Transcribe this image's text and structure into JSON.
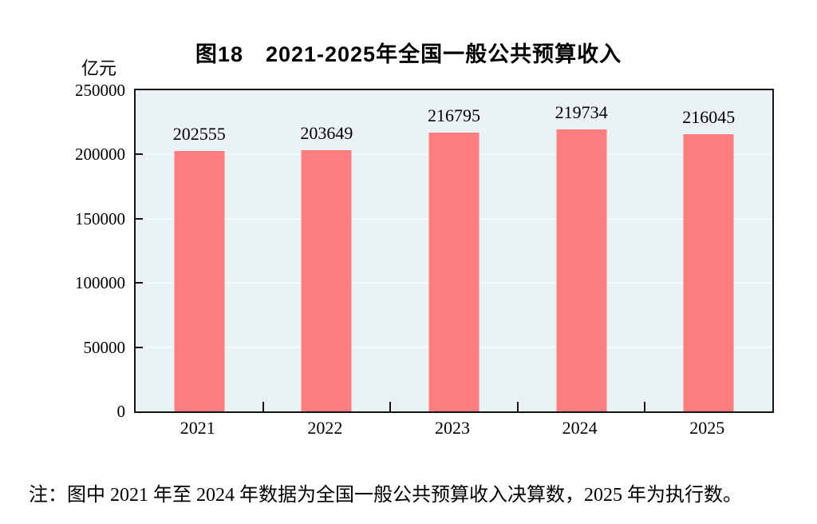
{
  "header": {
    "title": "图18　2021-2025年全国一般公共预算收入"
  },
  "chart_data": {
    "type": "bar",
    "title": "图18　2021-2025年全国一般公共预算收入",
    "unit_label": "亿元",
    "categories": [
      "2021",
      "2022",
      "2023",
      "2024",
      "2025"
    ],
    "values": [
      202555,
      203649,
      216795,
      219734,
      216045
    ],
    "value_labels": [
      "202555",
      "203649",
      "216795",
      "219734",
      "216045"
    ],
    "xlabel": "",
    "ylabel": "亿元",
    "ylim": [
      0,
      250000
    ],
    "yticks": [
      0,
      50000,
      100000,
      150000,
      200000,
      250000
    ],
    "grid": "horizontal",
    "legend": "none",
    "colors": {
      "bar": "#FC7E7E",
      "plot_background": "#EBF2F6",
      "axis": "#141414",
      "gridline": "#F4F9FB",
      "text": "#000000"
    }
  },
  "footnote": {
    "text": "注：图中 2021 年至 2024 年数据为全国一般公共预算收入决算数，2025 年为执行数。"
  }
}
